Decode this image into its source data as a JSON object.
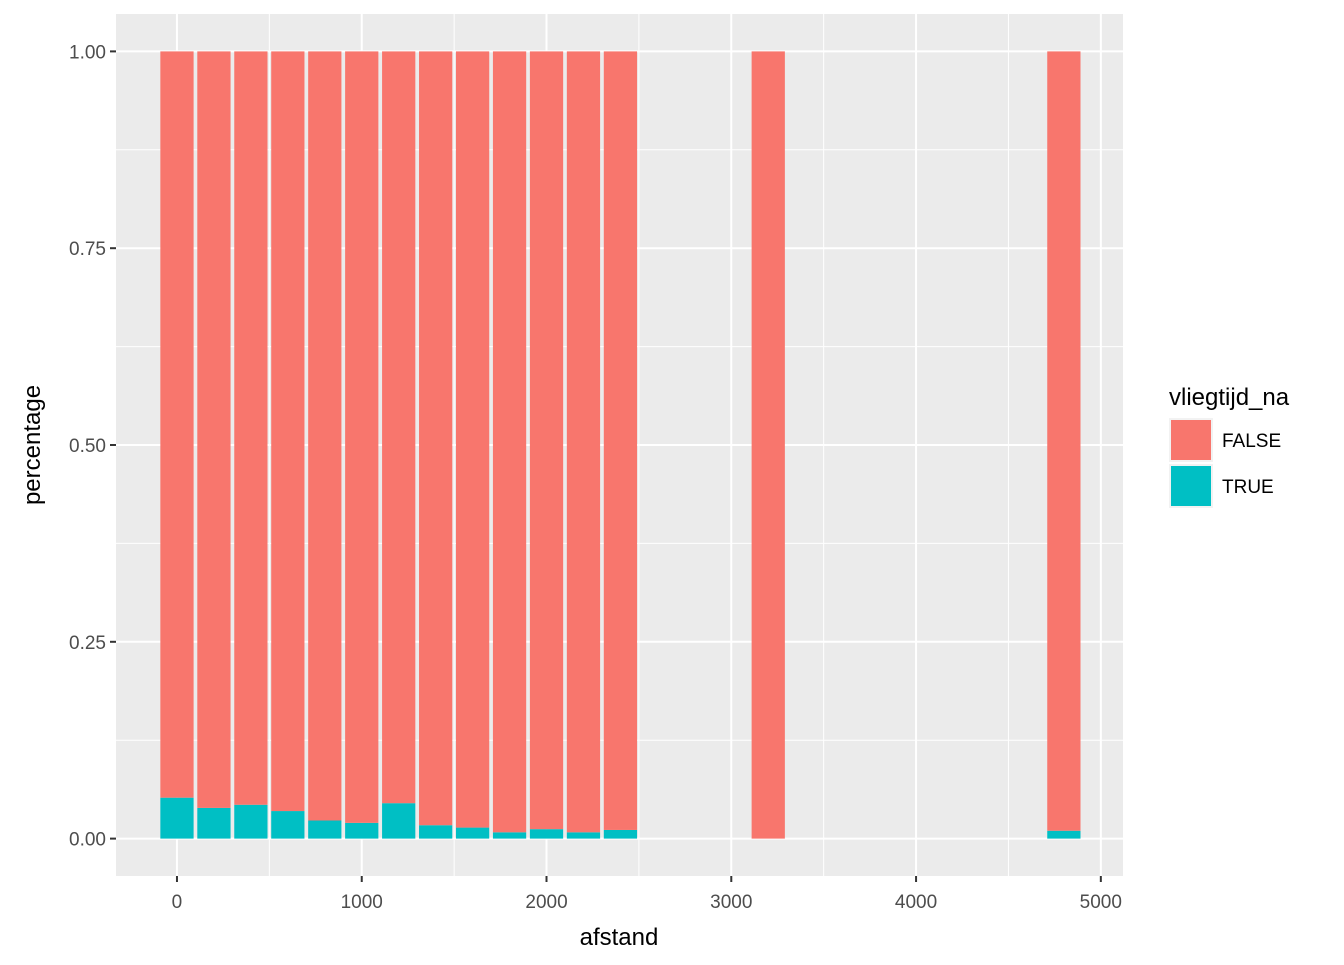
{
  "chart_data": {
    "type": "bar",
    "stacked": true,
    "xlabel": "afstand",
    "ylabel": "percentage",
    "xlim": [
      -330,
      5120
    ],
    "ylim": [
      -0.0475,
      1.0475
    ],
    "x_ticks": [
      0,
      1000,
      2000,
      3000,
      4000,
      5000
    ],
    "x_tick_labels": [
      "0",
      "1000",
      "2000",
      "3000",
      "4000",
      "5000"
    ],
    "y_ticks": [
      0.0,
      0.25,
      0.5,
      0.75,
      1.0
    ],
    "y_tick_labels": [
      "0.00",
      "0.25",
      "0.50",
      "0.75",
      "1.00"
    ],
    "bar_width": 180,
    "x": [
      0,
      200,
      400,
      600,
      800,
      1000,
      1200,
      1400,
      1600,
      1800,
      2000,
      2200,
      2400,
      3200,
      4800
    ],
    "series": [
      {
        "name": "TRUE",
        "color": "#00BFC4",
        "values": [
          0.052,
          0.039,
          0.043,
          0.035,
          0.023,
          0.02,
          0.045,
          0.017,
          0.014,
          0.008,
          0.012,
          0.008,
          0.011,
          0.0,
          0.01
        ]
      },
      {
        "name": "FALSE",
        "color": "#F8766D",
        "values": [
          0.948,
          0.961,
          0.957,
          0.965,
          0.977,
          0.98,
          0.955,
          0.983,
          0.986,
          0.992,
          0.988,
          0.992,
          0.989,
          1.0,
          0.99
        ]
      }
    ],
    "legend": {
      "title": "vliegtijd_na",
      "position": "right",
      "entries": [
        {
          "label": "FALSE",
          "color": "#F8766D"
        },
        {
          "label": "TRUE",
          "color": "#00BFC4"
        }
      ]
    },
    "grid": true,
    "panel_background": "#EBEBEB"
  }
}
